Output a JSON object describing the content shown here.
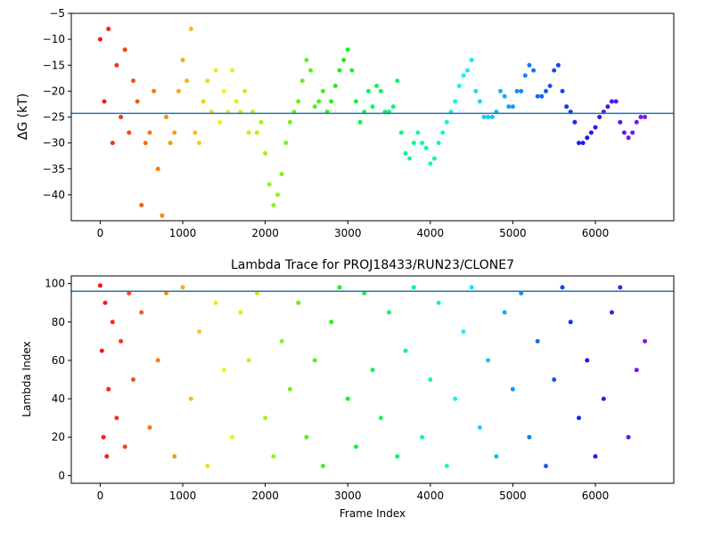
{
  "chart_data": [
    {
      "type": "scatter",
      "title": "",
      "xlabel": "",
      "ylabel": "ΔG (kT)",
      "xlim": [
        -350,
        6950
      ],
      "ylim": [
        -45,
        -5
      ],
      "xticks": [
        0,
        1000,
        2000,
        3000,
        4000,
        5000,
        6000
      ],
      "yticks": [
        -40,
        -35,
        -30,
        -25,
        -20,
        -15,
        -10,
        -5
      ],
      "reference_line": -24.3,
      "color_scale": "rainbow (red at frame 0 → violet at last frame)",
      "x": [
        0,
        50,
        100,
        150,
        200,
        250,
        300,
        350,
        400,
        450,
        500,
        550,
        600,
        650,
        700,
        750,
        800,
        850,
        900,
        950,
        1000,
        1050,
        1100,
        1150,
        1200,
        1250,
        1300,
        1350,
        1400,
        1450,
        1500,
        1550,
        1600,
        1650,
        1700,
        1750,
        1800,
        1850,
        1900,
        1950,
        2000,
        2050,
        2100,
        2150,
        2200,
        2250,
        2300,
        2350,
        2400,
        2450,
        2500,
        2550,
        2600,
        2650,
        2700,
        2750,
        2800,
        2850,
        2900,
        2950,
        3000,
        3050,
        3100,
        3150,
        3200,
        3250,
        3300,
        3350,
        3400,
        3450,
        3500,
        3550,
        3600,
        3650,
        3700,
        3750,
        3800,
        3850,
        3900,
        3950,
        4000,
        4050,
        4100,
        4150,
        4200,
        4250,
        4300,
        4350,
        4400,
        4450,
        4500,
        4550,
        4600,
        4650,
        4700,
        4750,
        4800,
        4850,
        4900,
        4950,
        5000,
        5050,
        5100,
        5150,
        5200,
        5250,
        5300,
        5350,
        5400,
        5450,
        5500,
        5550,
        5600,
        5650,
        5700,
        5750,
        5800,
        5850,
        5900,
        5950,
        6000,
        6050,
        6100,
        6150,
        6200,
        6250,
        6300,
        6350,
        6400,
        6450,
        6500,
        6550,
        6600
      ],
      "y": [
        -10,
        -22,
        -8,
        -30,
        -15,
        -25,
        -12,
        -28,
        -18,
        -22,
        -42,
        -30,
        -28,
        -20,
        -35,
        -44,
        -25,
        -30,
        -28,
        -20,
        -14,
        -18,
        -8,
        -28,
        -30,
        -22,
        -18,
        -24,
        -16,
        -26,
        -20,
        -24,
        -16,
        -22,
        -24,
        -20,
        -28,
        -24,
        -28,
        -26,
        -32,
        -38,
        -42,
        -40,
        -36,
        -30,
        -26,
        -24,
        -22,
        -18,
        -14,
        -16,
        -23,
        -22,
        -20,
        -24,
        -22,
        -19,
        -16,
        -14,
        -12,
        -16,
        -22,
        -26,
        -24,
        -20,
        -23,
        -19,
        -20,
        -24,
        -24,
        -23,
        -18,
        -28,
        -32,
        -33,
        -30,
        -28,
        -30,
        -31,
        -34,
        -33,
        -30,
        -28,
        -26,
        -24,
        -22,
        -19,
        -17,
        -16,
        -14,
        -20,
        -22,
        -25,
        -25,
        -25,
        -24,
        -20,
        -21,
        -23,
        -23,
        -20,
        -20,
        -17,
        -15,
        -16,
        -21,
        -21,
        -20,
        -19,
        -16,
        -15,
        -20,
        -23,
        -24,
        -26,
        -30,
        -30,
        -29,
        -28,
        -27,
        -25,
        -24,
        -23,
        -22,
        -22,
        -26,
        -28,
        -29,
        -28,
        -26,
        -25,
        -25
      ]
    },
    {
      "type": "scatter",
      "title": "Lambda Trace for PROJ18433/RUN23/CLONE7",
      "xlabel": "Frame Index",
      "ylabel": "Lambda Index",
      "xlim": [
        -350,
        6950
      ],
      "ylim": [
        -4,
        104
      ],
      "xticks": [
        0,
        1000,
        2000,
        3000,
        4000,
        5000,
        6000
      ],
      "yticks": [
        0,
        20,
        40,
        60,
        80,
        100
      ],
      "reference_line": 96,
      "color_scale": "rainbow (red at frame 0 → violet at last frame)",
      "x": [
        0,
        20,
        40,
        60,
        80,
        100,
        150,
        200,
        250,
        300,
        350,
        400,
        500,
        600,
        700,
        800,
        900,
        1000,
        1100,
        1200,
        1300,
        1400,
        1500,
        1600,
        1700,
        1800,
        1900,
        2000,
        2100,
        2200,
        2300,
        2400,
        2500,
        2600,
        2700,
        2800,
        2900,
        3000,
        3100,
        3200,
        3300,
        3400,
        3500,
        3600,
        3700,
        3800,
        3900,
        4000,
        4100,
        4200,
        4300,
        4400,
        4500,
        4600,
        4700,
        4800,
        4900,
        5000,
        5100,
        5200,
        5300,
        5400,
        5500,
        5600,
        5700,
        5800,
        5900,
        6000,
        6100,
        6200,
        6300,
        6400,
        6500,
        6600
      ],
      "y": [
        99,
        65,
        20,
        90,
        10,
        45,
        80,
        30,
        70,
        15,
        95,
        50,
        85,
        25,
        60,
        95,
        10,
        98,
        40,
        75,
        5,
        90,
        55,
        20,
        85,
        60,
        95,
        30,
        10,
        70,
        45,
        90,
        20,
        60,
        5,
        80,
        98,
        40,
        15,
        95,
        55,
        30,
        85,
        10,
        65,
        98,
        20,
        50,
        90,
        5,
        40,
        75,
        98,
        25,
        60,
        10,
        85,
        45,
        95,
        20,
        70,
        5,
        50,
        98,
        80,
        30,
        60,
        10,
        40,
        85,
        98,
        20,
        55,
        70
      ]
    }
  ]
}
